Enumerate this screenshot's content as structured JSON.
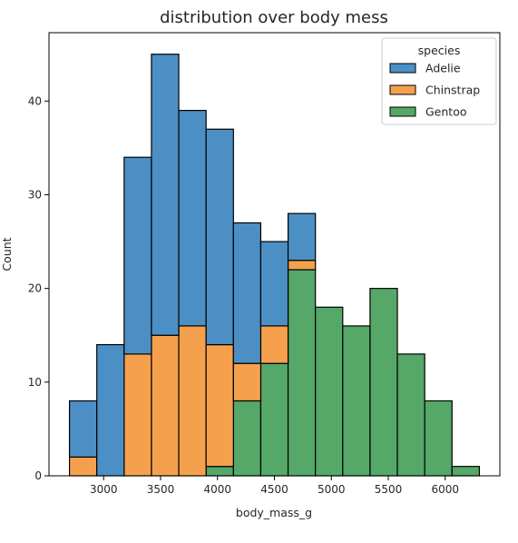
{
  "chart_data": {
    "type": "bar",
    "subtype": "stacked-histogram",
    "title": "distribution over body mess",
    "xlabel": "body_mass_g",
    "ylabel": "Count",
    "xlim": [
      2520,
      6480
    ],
    "ylim": [
      0,
      47.3
    ],
    "xticks": [
      3000,
      3500,
      4000,
      4500,
      5000,
      5500,
      6000
    ],
    "yticks": [
      0,
      10,
      20,
      30,
      40
    ],
    "grid": false,
    "legend": {
      "title": "species",
      "placement": "top-right",
      "entries": [
        "Adelie",
        "Chinstrap",
        "Gentoo"
      ]
    },
    "bins": {
      "start": 2700,
      "width": 240,
      "count": 15,
      "edges": [
        2700,
        2940,
        3180,
        3420,
        3660,
        3900,
        4140,
        4380,
        4620,
        4860,
        5100,
        5340,
        5580,
        5820,
        6060,
        6300
      ]
    },
    "series": [
      {
        "name": "Gentoo",
        "color": "#55a868",
        "values": [
          0,
          0,
          0,
          0,
          0,
          1,
          8,
          12,
          22,
          18,
          16,
          20,
          13,
          8,
          1
        ]
      },
      {
        "name": "Chinstrap",
        "color": "#f5a04d",
        "values": [
          2,
          0,
          13,
          15,
          16,
          13,
          4,
          4,
          1,
          0,
          0,
          0,
          0,
          0,
          0
        ]
      },
      {
        "name": "Adelie",
        "color": "#4c8fc4",
        "values": [
          6,
          14,
          21,
          30,
          23,
          23,
          15,
          9,
          5,
          0,
          0,
          0,
          0,
          0,
          0
        ]
      }
    ]
  }
}
